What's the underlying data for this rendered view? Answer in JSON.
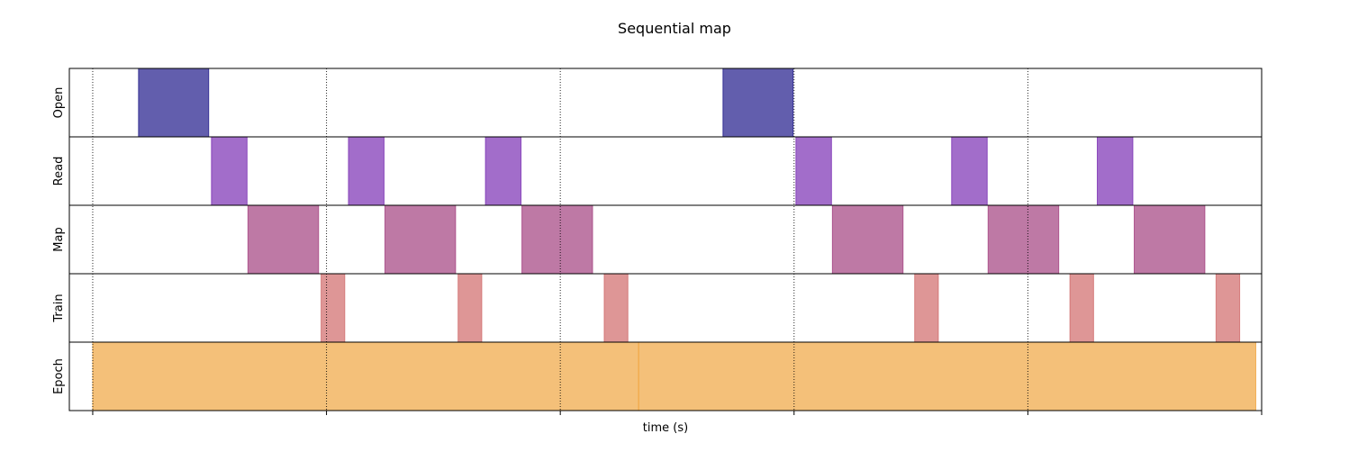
{
  "chart_data": {
    "type": "timeline",
    "title": "Sequential map",
    "xlabel": "time (s)",
    "ylabel": "",
    "xlim": [
      -0.1,
      5.0
    ],
    "x_ticks": [
      0,
      1,
      2,
      3,
      4,
      5
    ],
    "x_tick_labels": [
      "",
      "",
      "",
      "",
      "",
      ""
    ],
    "grid": "vertical dotted lines at ticks",
    "rows": [
      {
        "name": "Open",
        "color": "#1f1a8a",
        "intervals": [
          [
            0.196,
            0.496
          ],
          [
            2.696,
            2.996
          ]
        ]
      },
      {
        "name": "Read",
        "color": "#7b2fb3",
        "intervals": [
          [
            0.508,
            0.66
          ],
          [
            1.094,
            1.246
          ],
          [
            1.68,
            1.832
          ],
          [
            3.008,
            3.16
          ],
          [
            3.674,
            3.826
          ],
          [
            4.297,
            4.449
          ]
        ]
      },
      {
        "name": "Map",
        "color": "#a2407f",
        "intervals": [
          [
            0.664,
            0.966
          ],
          [
            1.25,
            1.552
          ],
          [
            1.836,
            2.138
          ],
          [
            3.164,
            3.466
          ],
          [
            3.83,
            4.132
          ],
          [
            4.455,
            4.757
          ]
        ]
      },
      {
        "name": "Train",
        "color": "#d06a6a",
        "intervals": [
          [
            0.977,
            1.078
          ],
          [
            1.563,
            1.664
          ],
          [
            2.188,
            2.289
          ],
          [
            3.516,
            3.617
          ],
          [
            4.18,
            4.281
          ],
          [
            4.805,
            4.906
          ]
        ]
      },
      {
        "name": "Epoch",
        "color": "#f0a540",
        "intervals": [
          [
            0.0,
            2.335
          ],
          [
            2.335,
            4.975
          ]
        ]
      }
    ]
  }
}
